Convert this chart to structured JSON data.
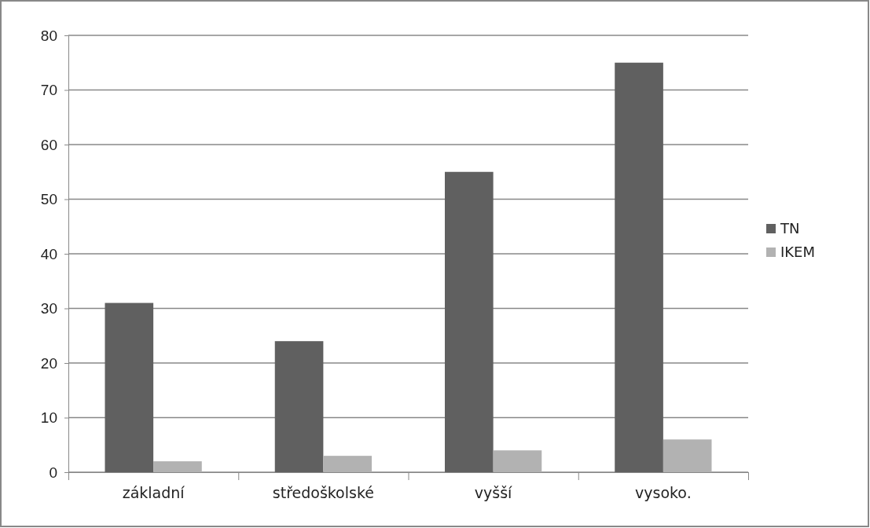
{
  "chart_data": {
    "type": "bar",
    "categories": [
      "základní",
      "středoškolské",
      "vyšší",
      "vysoko."
    ],
    "series": [
      {
        "name": "TN",
        "color": "#606060",
        "values": [
          31,
          24,
          55,
          75
        ]
      },
      {
        "name": "IKEM",
        "color": "#b2b2b2",
        "values": [
          2,
          3,
          4,
          6
        ]
      }
    ],
    "ylim": [
      0,
      80
    ],
    "yticks": [
      0,
      10,
      20,
      30,
      40,
      50,
      60,
      70,
      80
    ],
    "grid": "y",
    "legend": "right"
  }
}
